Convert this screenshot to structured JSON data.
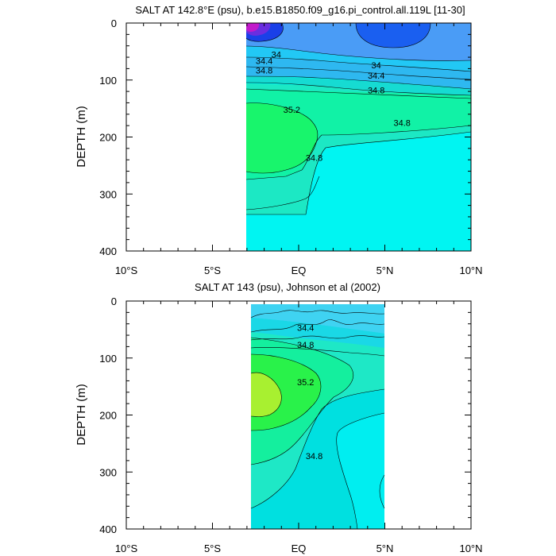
{
  "chart_data": [
    {
      "type": "contour",
      "title": "SALT AT 142.8°E (psu), b.e15.B1850.f09_g16.pi_control.all.119L [11-30]",
      "ylabel": "DEPTH (m)",
      "xlim": [
        -10,
        10
      ],
      "ylim": [
        400,
        0
      ],
      "x_ticks": [
        -10,
        -5,
        0,
        5,
        10
      ],
      "x_tick_labels": [
        "10°S",
        "5°S",
        "EQ",
        "5°N",
        "10°N"
      ],
      "y_ticks": [
        0,
        100,
        200,
        300,
        400
      ],
      "y_tick_labels": [
        "0",
        "100",
        "200",
        "300",
        "400"
      ],
      "data_extent": {
        "x": [
          -3.1,
          10
        ],
        "depth": [
          5,
          400
        ]
      },
      "contour_labels": [
        {
          "text": "34",
          "x": -1.3,
          "depth": 55
        },
        {
          "text": "34.4",
          "x": -2.0,
          "depth": 66
        },
        {
          "text": "34.8",
          "x": -2.0,
          "depth": 83
        },
        {
          "text": "34",
          "x": 4.5,
          "depth": 74
        },
        {
          "text": "34.4",
          "x": 4.5,
          "depth": 92
        },
        {
          "text": "34.8",
          "x": 4.5,
          "depth": 118
        },
        {
          "text": "35.2",
          "x": -0.4,
          "depth": 152
        },
        {
          "text": "34.8",
          "x": 6.0,
          "depth": 175
        },
        {
          "text": "34.8",
          "x": 0.9,
          "depth": 236
        }
      ]
    },
    {
      "type": "contour",
      "title": "SALT AT 143 (psu), Johnson et al (2002)",
      "ylabel": "DEPTH (m)",
      "xlim": [
        -10,
        10
      ],
      "ylim": [
        400,
        0
      ],
      "x_ticks": [
        -10,
        -5,
        0,
        5,
        10
      ],
      "x_tick_labels": [
        "10°S",
        "5°S",
        "EQ",
        "5°N",
        "10°N"
      ],
      "y_ticks": [
        0,
        100,
        200,
        300,
        400
      ],
      "y_tick_labels": [
        "0",
        "100",
        "200",
        "300",
        "400"
      ],
      "data_extent": {
        "x": [
          -2.8,
          5
        ],
        "depth": [
          5,
          400
        ]
      },
      "contour_labels": [
        {
          "text": "34.4",
          "x": 0.4,
          "depth": 47
        },
        {
          "text": "34.8",
          "x": 0.4,
          "depth": 77
        },
        {
          "text": "35.2",
          "x": 0.4,
          "depth": 142
        },
        {
          "text": "34.8",
          "x": 0.9,
          "depth": 272
        }
      ]
    }
  ]
}
